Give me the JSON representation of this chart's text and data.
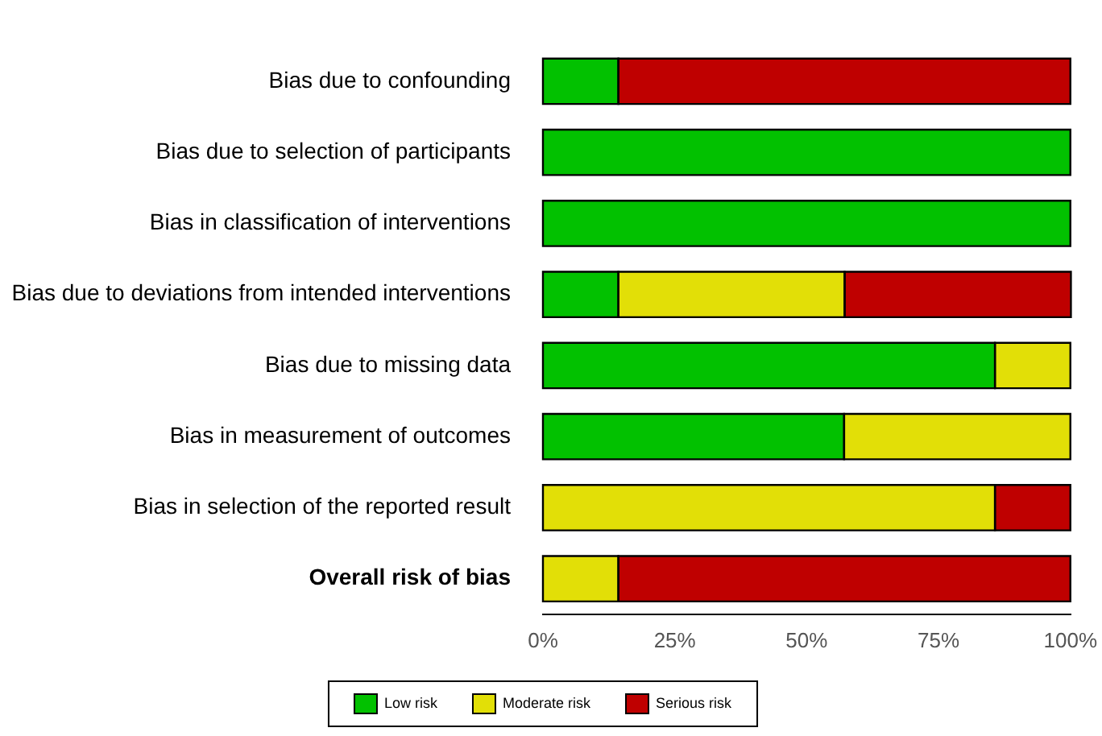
{
  "chart_data": {
    "type": "bar",
    "orientation": "horizontal",
    "stacked": true,
    "categories": [
      "Bias due to confounding",
      "Bias due to selection of participants",
      "Bias in classification of interventions",
      "Bias due to deviations from intended interventions",
      "Bias due to missing data",
      "Bias in measurement of outcomes",
      "Bias in selection of the reported result",
      "Overall risk of bias"
    ],
    "series": [
      {
        "name": "Low risk",
        "color": "#02c100",
        "values": [
          14.3,
          100,
          100,
          14.3,
          85.7,
          57.1,
          0,
          0
        ]
      },
      {
        "name": "Moderate risk",
        "color": "#e2df07",
        "values": [
          0,
          0,
          0,
          42.9,
          14.3,
          42.9,
          85.7,
          14.3
        ]
      },
      {
        "name": "Serious risk",
        "color": "#bf0000",
        "values": [
          85.7,
          0,
          0,
          42.9,
          0,
          0,
          14.3,
          85.7
        ]
      }
    ],
    "xlim": [
      0,
      100
    ],
    "xticks": [
      {
        "value": 0,
        "label": "0%"
      },
      {
        "value": 25,
        "label": "25%"
      },
      {
        "value": 50,
        "label": "50%"
      },
      {
        "value": 75,
        "label": "75%"
      },
      {
        "value": 100,
        "label": "100%"
      }
    ],
    "grid": false,
    "legend": "bottom"
  }
}
